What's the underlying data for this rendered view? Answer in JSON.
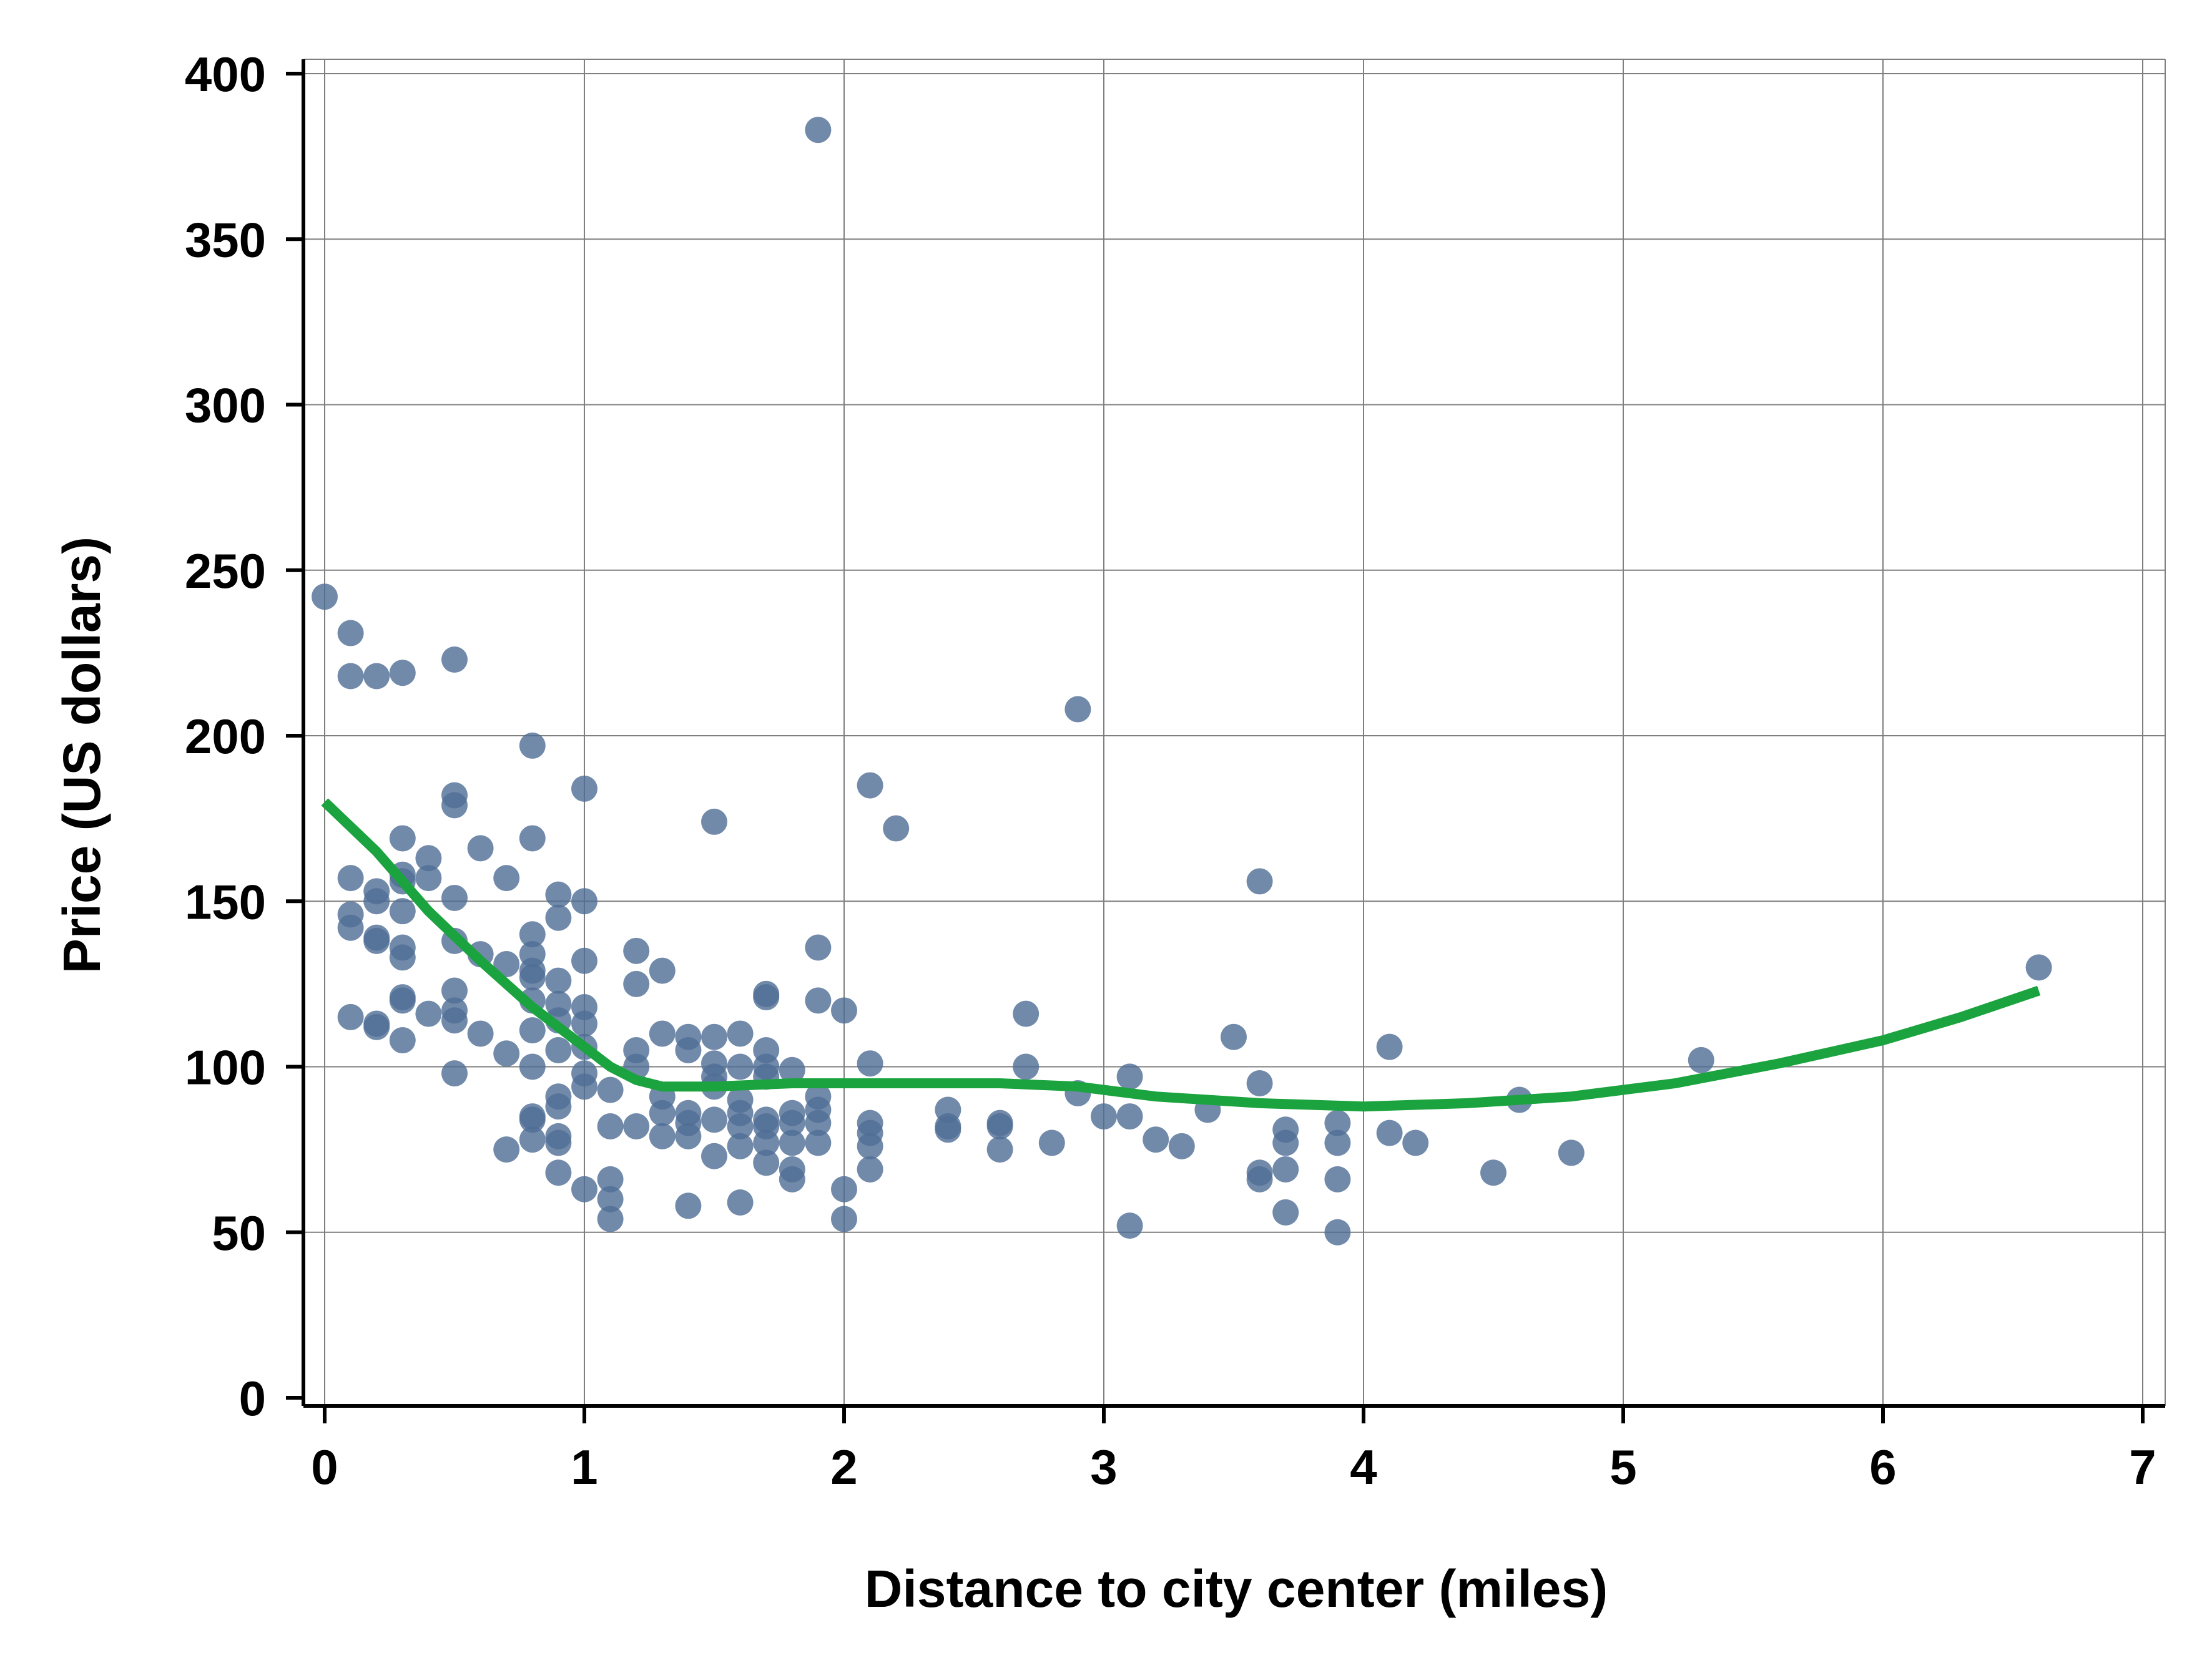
{
  "chart_data": {
    "type": "scatter",
    "title": "",
    "xlabel": "Distance to city center (miles)",
    "ylabel": "Price (US dollars)",
    "xlim": [
      0,
      7
    ],
    "ylim": [
      0,
      400
    ],
    "x_ticks": [
      0,
      1,
      2,
      3,
      4,
      5,
      6,
      7
    ],
    "y_ticks": [
      0,
      50,
      100,
      150,
      200,
      250,
      300,
      350,
      400
    ],
    "grid": true,
    "legend": "none",
    "colors": {
      "points": "#4f6d95",
      "fit_line": "#1aa33e",
      "grid": "#7f7f7f",
      "axis": "#000000"
    },
    "series": [
      {
        "kind": "scatter",
        "points": [
          [
            0,
            242
          ],
          [
            0.1,
            231
          ],
          [
            0.1,
            218
          ],
          [
            0.2,
            218
          ],
          [
            0.3,
            219
          ],
          [
            0.5,
            223
          ],
          [
            0.1,
            157
          ],
          [
            0.1,
            146
          ],
          [
            0.1,
            142
          ],
          [
            0.1,
            115
          ],
          [
            0.2,
            153
          ],
          [
            0.2,
            150
          ],
          [
            0.2,
            139
          ],
          [
            0.2,
            138
          ],
          [
            0.2,
            113
          ],
          [
            0.2,
            112
          ],
          [
            0.3,
            169
          ],
          [
            0.3,
            158
          ],
          [
            0.3,
            156
          ],
          [
            0.3,
            147
          ],
          [
            0.3,
            136
          ],
          [
            0.3,
            133
          ],
          [
            0.3,
            121
          ],
          [
            0.3,
            120
          ],
          [
            0.3,
            108
          ],
          [
            0.4,
            163
          ],
          [
            0.4,
            157
          ],
          [
            0.4,
            116
          ],
          [
            0.5,
            182
          ],
          [
            0.5,
            179
          ],
          [
            0.5,
            151
          ],
          [
            0.5,
            138
          ],
          [
            0.5,
            123
          ],
          [
            0.5,
            117
          ],
          [
            0.5,
            114
          ],
          [
            0.5,
            98
          ],
          [
            0.6,
            166
          ],
          [
            0.6,
            134
          ],
          [
            0.6,
            110
          ],
          [
            0.7,
            157
          ],
          [
            0.7,
            131
          ],
          [
            0.7,
            104
          ],
          [
            0.7,
            75
          ],
          [
            0.8,
            197
          ],
          [
            0.8,
            169
          ],
          [
            0.8,
            140
          ],
          [
            0.8,
            134
          ],
          [
            0.8,
            129
          ],
          [
            0.8,
            127
          ],
          [
            0.8,
            120
          ],
          [
            0.8,
            111
          ],
          [
            0.8,
            100
          ],
          [
            0.8,
            85
          ],
          [
            0.8,
            84
          ],
          [
            0.8,
            78
          ],
          [
            0.9,
            152
          ],
          [
            0.9,
            145
          ],
          [
            0.9,
            126
          ],
          [
            0.9,
            119
          ],
          [
            0.9,
            114
          ],
          [
            0.9,
            105
          ],
          [
            0.9,
            91
          ],
          [
            0.9,
            88
          ],
          [
            0.9,
            79
          ],
          [
            0.9,
            77
          ],
          [
            0.9,
            68
          ],
          [
            1.0,
            184
          ],
          [
            1.0,
            150
          ],
          [
            1.0,
            132
          ],
          [
            1.0,
            118
          ],
          [
            1.0,
            113
          ],
          [
            1.0,
            106
          ],
          [
            1.0,
            98
          ],
          [
            1.0,
            94
          ],
          [
            1.0,
            63
          ],
          [
            1.1,
            93
          ],
          [
            1.1,
            82
          ],
          [
            1.1,
            66
          ],
          [
            1.1,
            60
          ],
          [
            1.1,
            54
          ],
          [
            1.2,
            135
          ],
          [
            1.2,
            125
          ],
          [
            1.2,
            105
          ],
          [
            1.2,
            100
          ],
          [
            1.2,
            82
          ],
          [
            1.3,
            129
          ],
          [
            1.3,
            110
          ],
          [
            1.3,
            91
          ],
          [
            1.3,
            86
          ],
          [
            1.3,
            79
          ],
          [
            1.4,
            109
          ],
          [
            1.4,
            105
          ],
          [
            1.4,
            86
          ],
          [
            1.4,
            83
          ],
          [
            1.4,
            79
          ],
          [
            1.4,
            58
          ],
          [
            1.5,
            174
          ],
          [
            1.5,
            109
          ],
          [
            1.5,
            101
          ],
          [
            1.5,
            97
          ],
          [
            1.5,
            94
          ],
          [
            1.5,
            84
          ],
          [
            1.5,
            73
          ],
          [
            1.6,
            110
          ],
          [
            1.6,
            100
          ],
          [
            1.6,
            90
          ],
          [
            1.6,
            86
          ],
          [
            1.6,
            82
          ],
          [
            1.6,
            76
          ],
          [
            1.6,
            59
          ],
          [
            1.7,
            122
          ],
          [
            1.7,
            121
          ],
          [
            1.7,
            105
          ],
          [
            1.7,
            100
          ],
          [
            1.7,
            97
          ],
          [
            1.7,
            84
          ],
          [
            1.7,
            82
          ],
          [
            1.7,
            77
          ],
          [
            1.7,
            71
          ],
          [
            1.8,
            99
          ],
          [
            1.8,
            86
          ],
          [
            1.8,
            83
          ],
          [
            1.8,
            77
          ],
          [
            1.8,
            69
          ],
          [
            1.8,
            66
          ],
          [
            1.9,
            383
          ],
          [
            1.9,
            136
          ],
          [
            1.9,
            120
          ],
          [
            1.9,
            91
          ],
          [
            1.9,
            87
          ],
          [
            1.9,
            83
          ],
          [
            1.9,
            77
          ],
          [
            2.0,
            117
          ],
          [
            2.0,
            63
          ],
          [
            2.0,
            54
          ],
          [
            2.1,
            185
          ],
          [
            2.1,
            101
          ],
          [
            2.1,
            83
          ],
          [
            2.1,
            80
          ],
          [
            2.1,
            76
          ],
          [
            2.1,
            69
          ],
          [
            2.2,
            172
          ],
          [
            2.4,
            87
          ],
          [
            2.4,
            82
          ],
          [
            2.4,
            81
          ],
          [
            2.6,
            83
          ],
          [
            2.6,
            82
          ],
          [
            2.6,
            75
          ],
          [
            2.7,
            116
          ],
          [
            2.7,
            100
          ],
          [
            2.8,
            77
          ],
          [
            2.9,
            208
          ],
          [
            2.9,
            92
          ],
          [
            3.0,
            85
          ],
          [
            3.1,
            97
          ],
          [
            3.1,
            85
          ],
          [
            3.1,
            52
          ],
          [
            3.2,
            78
          ],
          [
            3.3,
            76
          ],
          [
            3.4,
            87
          ],
          [
            3.5,
            109
          ],
          [
            3.6,
            156
          ],
          [
            3.6,
            95
          ],
          [
            3.6,
            68
          ],
          [
            3.6,
            66
          ],
          [
            3.7,
            81
          ],
          [
            3.7,
            77
          ],
          [
            3.7,
            69
          ],
          [
            3.7,
            56
          ],
          [
            3.9,
            83
          ],
          [
            3.9,
            77
          ],
          [
            3.9,
            66
          ],
          [
            3.9,
            50
          ],
          [
            4.1,
            106
          ],
          [
            4.1,
            80
          ],
          [
            4.2,
            77
          ],
          [
            4.5,
            68
          ],
          [
            4.6,
            90
          ],
          [
            4.8,
            74
          ],
          [
            5.3,
            102
          ],
          [
            6.6,
            130
          ]
        ]
      },
      {
        "kind": "line",
        "points": [
          [
            0,
            180
          ],
          [
            0.2,
            165
          ],
          [
            0.4,
            147
          ],
          [
            0.6,
            132
          ],
          [
            0.8,
            118
          ],
          [
            1.0,
            106
          ],
          [
            1.1,
            100
          ],
          [
            1.2,
            96
          ],
          [
            1.3,
            94
          ],
          [
            1.5,
            94
          ],
          [
            1.8,
            95
          ],
          [
            2.2,
            95
          ],
          [
            2.6,
            95
          ],
          [
            2.9,
            94
          ],
          [
            3.2,
            91
          ],
          [
            3.6,
            89
          ],
          [
            4.0,
            88
          ],
          [
            4.4,
            89
          ],
          [
            4.8,
            91
          ],
          [
            5.2,
            95
          ],
          [
            5.6,
            101
          ],
          [
            6.0,
            108
          ],
          [
            6.3,
            115
          ],
          [
            6.6,
            123
          ]
        ]
      }
    ]
  }
}
